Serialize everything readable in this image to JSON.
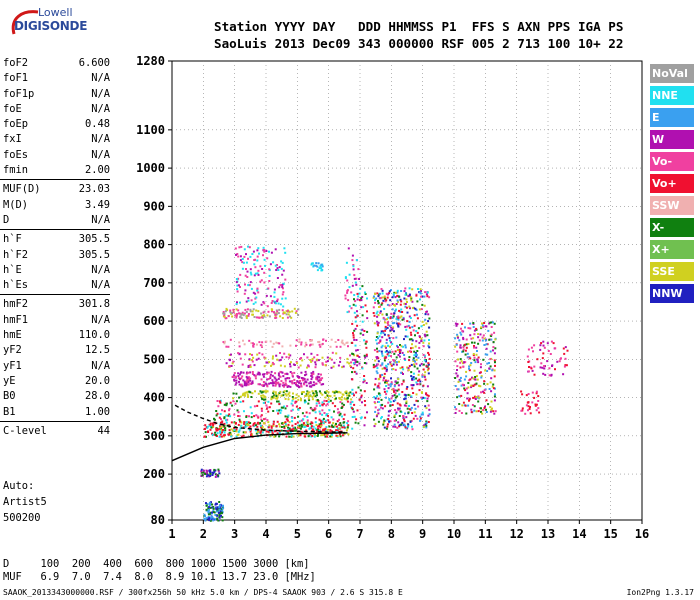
{
  "logo": {
    "top": "Lowell",
    "bottom": "DIGISONDE"
  },
  "header": {
    "labels": "Station YYYY DAY   DDD HHMMSS P1  FFS S AXN PPS IGA PS",
    "values": "SaoLuis 2013 Dec09 343 000000 RSF 005 2 713 100 10+ 22"
  },
  "params": [
    {
      "k": "foF2",
      "v": "6.600"
    },
    {
      "k": "foF1",
      "v": "N/A"
    },
    {
      "k": "foF1p",
      "v": "N/A"
    },
    {
      "k": "foE",
      "v": "N/A"
    },
    {
      "k": "foEp",
      "v": "0.48"
    },
    {
      "k": "fxI",
      "v": "N/A"
    },
    {
      "k": "foEs",
      "v": "N/A"
    },
    {
      "k": "fmin",
      "v": "2.00"
    },
    {
      "sep": true
    },
    {
      "k": "MUF(D)",
      "v": "23.03"
    },
    {
      "k": "M(D)",
      "v": "3.49"
    },
    {
      "k": "D",
      "v": "N/A"
    },
    {
      "sep": true
    },
    {
      "k": "h`F",
      "v": "305.5"
    },
    {
      "k": "h`F2",
      "v": "305.5"
    },
    {
      "k": "h`E",
      "v": "N/A"
    },
    {
      "k": "h`Es",
      "v": "N/A"
    },
    {
      "sep": true
    },
    {
      "k": "hmF2",
      "v": "301.8"
    },
    {
      "k": "hmF1",
      "v": "N/A"
    },
    {
      "k": "hmE",
      "v": "110.0"
    },
    {
      "k": "yF2",
      "v": "12.5"
    },
    {
      "k": "yF1",
      "v": "N/A"
    },
    {
      "k": "yE",
      "v": "20.0"
    },
    {
      "k": "B0",
      "v": "28.0"
    },
    {
      "k": "B1",
      "v": "1.00"
    },
    {
      "sep": true
    },
    {
      "k": "C-level",
      "v": "44"
    }
  ],
  "auto": {
    "line1": "Auto:",
    "line2": "Artist5",
    "line3": "500200"
  },
  "legend": [
    {
      "label": "NoVal",
      "color": "#a0a0a0"
    },
    {
      "label": "NNE",
      "color": "#20e0f0"
    },
    {
      "label": "E",
      "color": "#3aa0f0"
    },
    {
      "label": "W",
      "color": "#b010b0"
    },
    {
      "label": "Vo-",
      "color": "#f040a0"
    },
    {
      "label": "Vo+",
      "color": "#f01030"
    },
    {
      "label": "SSW",
      "color": "#f0b0b0"
    },
    {
      "label": "X-",
      "color": "#108010"
    },
    {
      "label": "X+",
      "color": "#70c050"
    },
    {
      "label": "SSE",
      "color": "#d0d020"
    },
    {
      "label": "NNW",
      "color": "#2020c0"
    }
  ],
  "dmuf": {
    "d_line": "D     100  200  400  600  800 1000 1500 3000 [km]",
    "muf_line": "MUF   6.9  7.0  7.4  8.0  8.9 10.1 13.7 23.0 [MHz]"
  },
  "footer": "SAAOK_2013343000000.RSF / 300fx256h 50 kHz 5.0 km / DPS-4 SAAOK 903 / 2.6 S 315.8 E",
  "version": "Ion2Png 1.3.17",
  "chart_data": {
    "type": "scatter",
    "x_range": [
      1,
      16
    ],
    "y_range": [
      80,
      1280
    ],
    "x_ticks": [
      1,
      2,
      3,
      4,
      5,
      6,
      7,
      8,
      9,
      10,
      11,
      12,
      13,
      14,
      15,
      16
    ],
    "y_ticks": [
      80,
      200,
      300,
      400,
      500,
      600,
      700,
      800,
      900,
      1000,
      1100,
      1280
    ],
    "x_unit": "MHz",
    "y_unit": "km",
    "clusters": [
      {
        "x": [
          2.0,
          2.6
        ],
        "y": [
          80,
          130
        ],
        "colors": [
          "#2020c0",
          "#108010",
          "#3aa0f0"
        ],
        "n": 120
      },
      {
        "x": [
          1.9,
          2.5
        ],
        "y": [
          195,
          215
        ],
        "colors": [
          "#b010b0",
          "#2020c0",
          "#108010"
        ],
        "n": 40
      },
      {
        "x": [
          2.0,
          6.6
        ],
        "y": [
          300,
          340
        ],
        "colors": [
          "#f01030",
          "#f01030",
          "#108010",
          "#d0d020",
          "#20e0f0"
        ],
        "n": 420
      },
      {
        "x": [
          2.3,
          6.9
        ],
        "y": [
          340,
          395
        ],
        "colors": [
          "#f01030",
          "#108010",
          "#20e0f0",
          "#f040a0"
        ],
        "n": 200
      },
      {
        "x": [
          2.9,
          6.7
        ],
        "y": [
          395,
          420
        ],
        "colors": [
          "#d0d020",
          "#d0d020",
          "#108010"
        ],
        "n": 160
      },
      {
        "x": [
          2.9,
          5.8
        ],
        "y": [
          430,
          470
        ],
        "colors": [
          "#b010b0",
          "#b010b0",
          "#f040a0"
        ],
        "n": 230
      },
      {
        "x": [
          2.6,
          6.9
        ],
        "y": [
          480,
          520
        ],
        "colors": [
          "#f040a0",
          "#b010b0",
          "#d0d020"
        ],
        "n": 120
      },
      {
        "x": [
          2.6,
          6.6
        ],
        "y": [
          535,
          555
        ],
        "colors": [
          "#f040a0",
          "#f0b0b0"
        ],
        "n": 70
      },
      {
        "x": [
          2.6,
          5.0
        ],
        "y": [
          610,
          635
        ],
        "colors": [
          "#d0d020",
          "#f040a0",
          "#a0a0a0"
        ],
        "n": 110
      },
      {
        "x": [
          3.0,
          4.6
        ],
        "y": [
          640,
          800
        ],
        "colors": [
          "#b010b0",
          "#f040a0",
          "#20e0f0"
        ],
        "n": 150
      },
      {
        "x": [
          5.4,
          5.8
        ],
        "y": [
          735,
          755
        ],
        "colors": [
          "#3aa0f0",
          "#20e0f0"
        ],
        "n": 20
      },
      {
        "x": [
          6.5,
          7.0
        ],
        "y": [
          620,
          800
        ],
        "colors": [
          "#b010b0",
          "#f040a0",
          "#20e0f0"
        ],
        "n": 40
      },
      {
        "x": [
          6.7,
          7.2
        ],
        "y": [
          320,
          700
        ],
        "colors": [
          "#f01030",
          "#108010",
          "#20e0f0",
          "#b010b0"
        ],
        "n": 110
      },
      {
        "x": [
          7.4,
          9.2
        ],
        "y": [
          320,
          690
        ],
        "colors": [
          "#20e0f0",
          "#3aa0f0",
          "#f01030",
          "#108010",
          "#f040a0",
          "#d0d020",
          "#b010b0",
          "#2020c0"
        ],
        "n": 700
      },
      {
        "x": [
          10.0,
          11.3
        ],
        "y": [
          360,
          600
        ],
        "colors": [
          "#f01030",
          "#b010b0",
          "#d0d020",
          "#108010",
          "#3aa0f0",
          "#f040a0"
        ],
        "n": 280
      },
      {
        "x": [
          12.1,
          12.7
        ],
        "y": [
          360,
          420
        ],
        "colors": [
          "#f01030",
          "#f040a0"
        ],
        "n": 30
      },
      {
        "x": [
          12.3,
          13.6
        ],
        "y": [
          460,
          550
        ],
        "colors": [
          "#f040a0",
          "#f01030",
          "#b010b0"
        ],
        "n": 60
      }
    ],
    "traces": [
      {
        "color": "#000000",
        "style": "solid",
        "x": [
          1.0,
          2.0,
          3.0,
          4.0,
          5.0,
          6.0,
          6.6
        ],
        "y": [
          235,
          270,
          293,
          302,
          306,
          307,
          308
        ]
      },
      {
        "color": "#000000",
        "style": "dashed",
        "x": [
          1.1,
          1.5,
          2.0,
          2.5,
          3.0,
          4.0,
          5.0,
          6.0,
          6.5
        ],
        "y": [
          380,
          362,
          345,
          331,
          322,
          315,
          312,
          310,
          310
        ]
      }
    ]
  }
}
